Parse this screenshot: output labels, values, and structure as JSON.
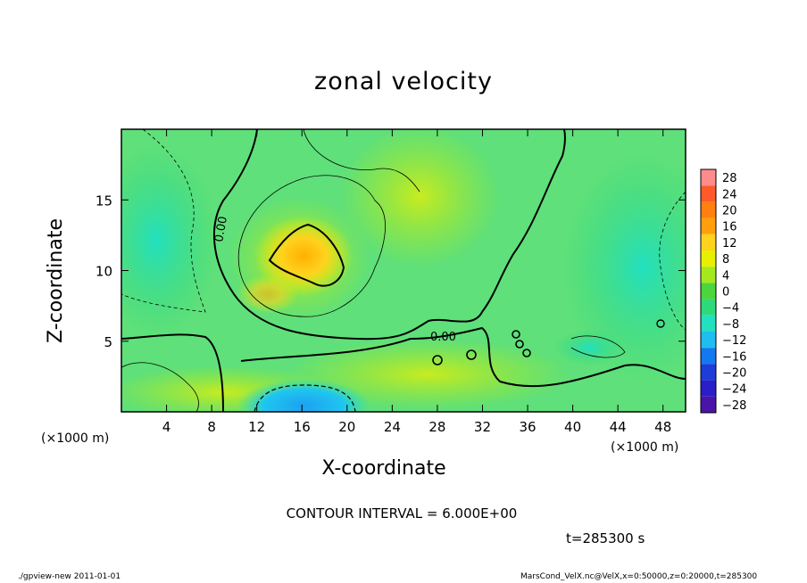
{
  "chart_data": {
    "type": "heatmap",
    "title": "zonal velocity",
    "xlabel": "X-coordinate",
    "ylabel": "Z-coordinate",
    "x_unit_left": "(×1000 m)",
    "x_unit_right": "(×1000 m)",
    "xlim": [
      0,
      50
    ],
    "ylim": [
      0,
      20
    ],
    "x_ticks": [
      4,
      8,
      12,
      16,
      20,
      24,
      28,
      32,
      36,
      40,
      44,
      48
    ],
    "y_ticks": [
      5,
      10,
      15
    ],
    "colorbar": {
      "levels": [
        28,
        24,
        20,
        16,
        12,
        8,
        4,
        0,
        -4,
        -8,
        -12,
        -16,
        -20,
        -24,
        -28
      ],
      "colors": [
        "#ff8c8c",
        "#ff5a2a",
        "#ff7f0f",
        "#ff9f0a",
        "#ffd21e",
        "#e8f000",
        "#a6e81e",
        "#4cd63c",
        "#2ed97a",
        "#22e0c0",
        "#1ebef0",
        "#1478f0",
        "#1e3cd8",
        "#2a1ec8",
        "#4a14a8"
      ]
    },
    "contour_labels": [
      "0.00",
      "0.00"
    ],
    "annotations": {
      "contour_interval": "CONTOUR INTERVAL = 6.000E+00",
      "time": "t=285300 s"
    }
  },
  "footer": {
    "left": "./gpview-new  2011-01-01",
    "right": "MarsCond_VelX.nc@VelX,x=0:50000,z=0:20000,t=285300"
  },
  "colors": {
    "background_field": "#5fe07a",
    "zero_contour": "#000000"
  }
}
